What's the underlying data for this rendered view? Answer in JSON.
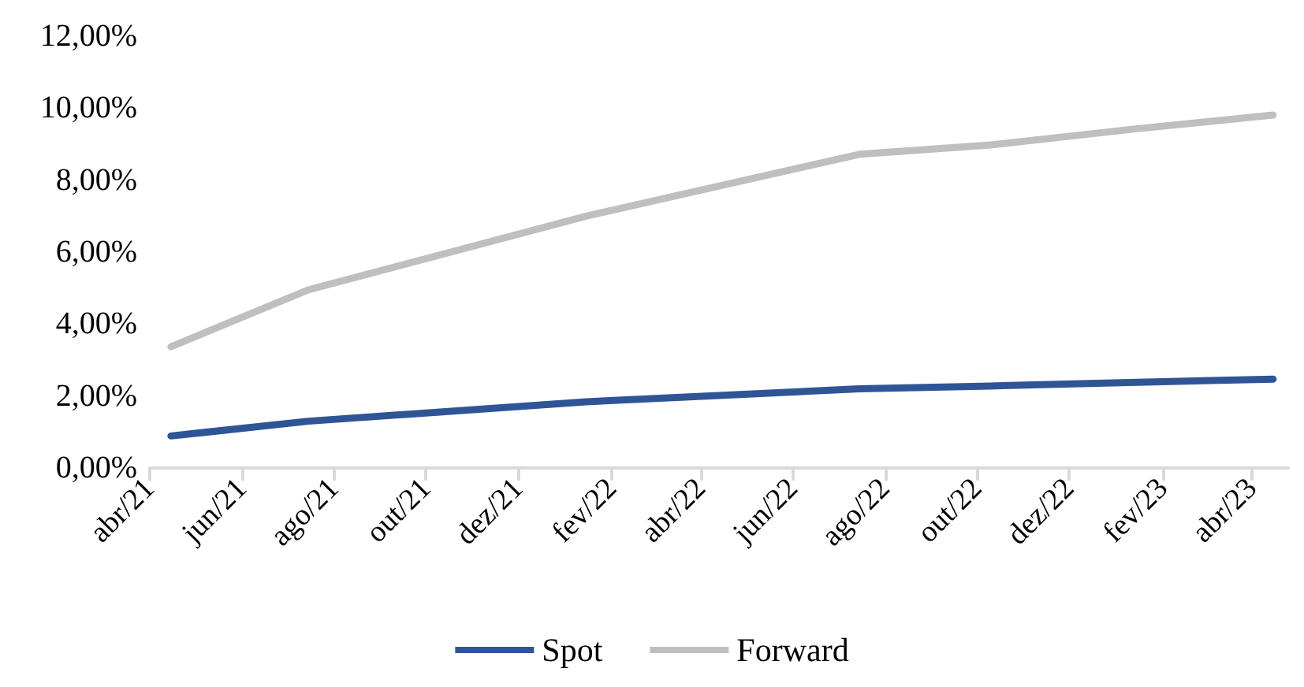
{
  "chart_data": {
    "type": "line",
    "legend": "bottom",
    "grid": false,
    "marker": "none",
    "line_style": "solid",
    "xlim": [
      "2021-04-01",
      "2023-04-25"
    ],
    "xticks": [
      {
        "value": "2021-04-01",
        "label": "abr/21"
      },
      {
        "value": "2021-06-01",
        "label": "jun/21"
      },
      {
        "value": "2021-08-01",
        "label": "ago/21"
      },
      {
        "value": "2021-10-01",
        "label": "out/21"
      },
      {
        "value": "2021-12-01",
        "label": "dez/21"
      },
      {
        "value": "2022-02-01",
        "label": "fev/22"
      },
      {
        "value": "2022-04-01",
        "label": "abr/22"
      },
      {
        "value": "2022-06-01",
        "label": "jun/22"
      },
      {
        "value": "2022-08-01",
        "label": "ago/22"
      },
      {
        "value": "2022-10-01",
        "label": "out/22"
      },
      {
        "value": "2022-12-01",
        "label": "dez/22"
      },
      {
        "value": "2023-02-01",
        "label": "fev/23"
      },
      {
        "value": "2023-04-01",
        "label": "abr/23"
      }
    ],
    "ylim": [
      0,
      12
    ],
    "yticks": [
      {
        "value": 0,
        "label": "0,00%"
      },
      {
        "value": 2,
        "label": "2,00%"
      },
      {
        "value": 4,
        "label": "4,00%"
      },
      {
        "value": 6,
        "label": "6,00%"
      },
      {
        "value": 8,
        "label": "8,00%"
      },
      {
        "value": 10,
        "label": "10,00%"
      },
      {
        "value": 12,
        "label": "12,00%"
      }
    ],
    "x": [
      "2021-04-15",
      "2021-07-15",
      "2022-01-15",
      "2022-07-15",
      "2022-10-10",
      "2023-01-15",
      "2023-04-15"
    ],
    "series": [
      {
        "name": "Spot",
        "color": "#2f5597",
        "values": [
          0.89,
          1.3,
          1.84,
          2.2,
          2.28,
          2.38,
          2.47
        ]
      },
      {
        "name": "Forward",
        "color": "#bfbfbf",
        "values": [
          3.37,
          4.95,
          7.0,
          8.72,
          8.98,
          9.43,
          9.81
        ]
      }
    ]
  }
}
